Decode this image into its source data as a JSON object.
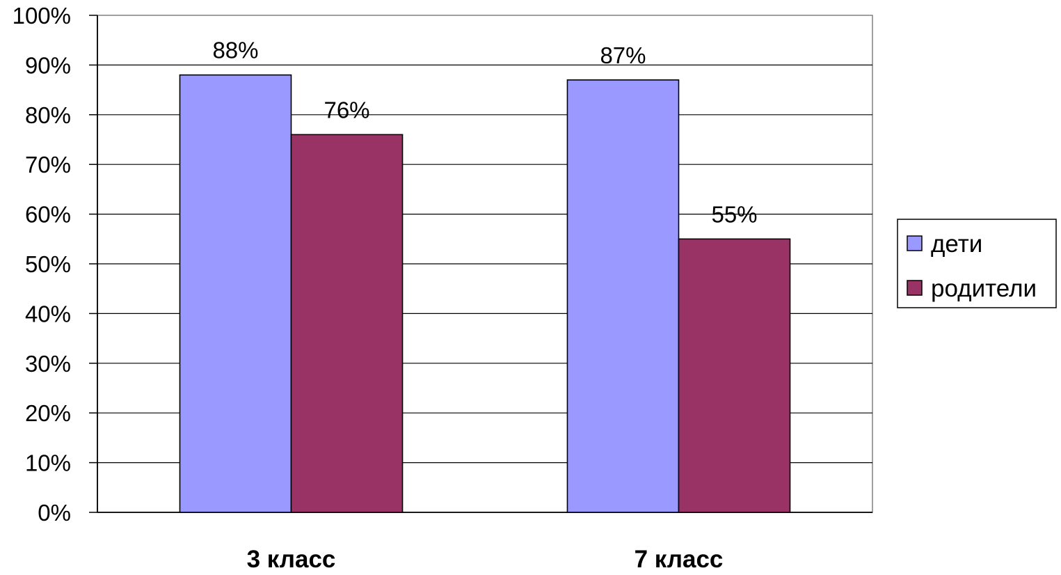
{
  "chart_data": {
    "type": "bar",
    "title": "",
    "xlabel": "",
    "ylabel": "",
    "categories": [
      "3 класс",
      "7 класс"
    ],
    "series": [
      {
        "name": "дети",
        "values": [
          88,
          87
        ],
        "labels": [
          "88%",
          "87%"
        ],
        "color": "#9999FF"
      },
      {
        "name": "родители",
        "values": [
          76,
          55
        ],
        "labels": [
          "76%",
          "55%"
        ],
        "color": "#993366"
      }
    ],
    "ylim": [
      0,
      100
    ],
    "yticks": [
      0,
      10,
      20,
      30,
      40,
      50,
      60,
      70,
      80,
      90,
      100
    ],
    "ytick_labels": [
      "0%",
      "10%",
      "20%",
      "30%",
      "40%",
      "50%",
      "60%",
      "70%",
      "80%",
      "90%",
      "100%"
    ],
    "grid": true,
    "legend_position": "right"
  }
}
